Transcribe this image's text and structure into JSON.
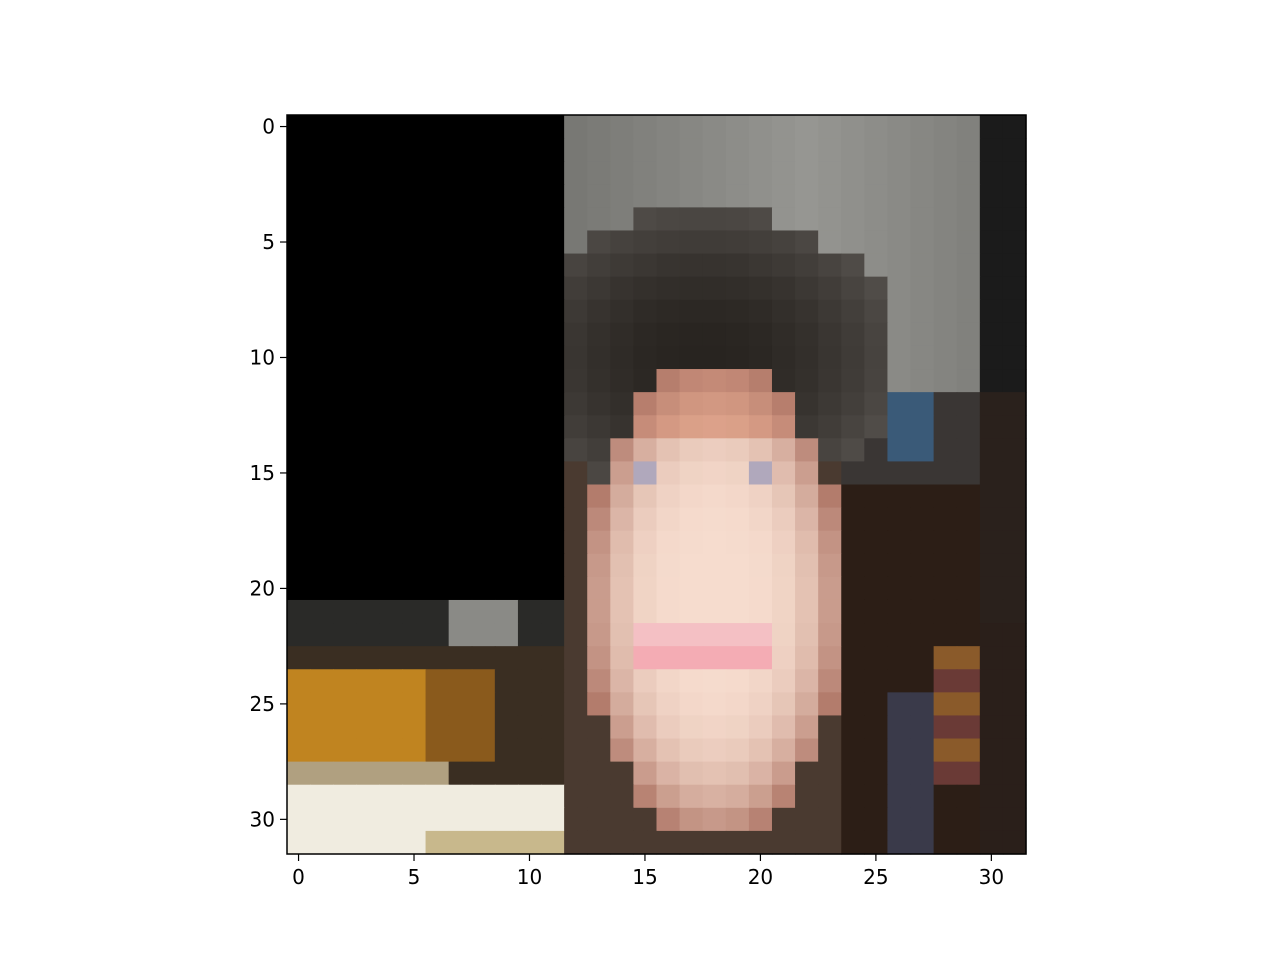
{
  "figure": {
    "type": "image",
    "description_free": true,
    "x_ticks": [
      "0",
      "5",
      "10",
      "15",
      "20",
      "25",
      "30"
    ],
    "y_ticks": [
      "0",
      "5",
      "10",
      "15",
      "20",
      "25",
      "30"
    ],
    "x_range": [
      -0.5,
      31.5
    ],
    "y_range": [
      -0.5,
      31.5
    ],
    "grid": false,
    "image_size": [
      32,
      32
    ],
    "occluded_region": {
      "rows": [
        0,
        20
      ],
      "cols": [
        0,
        11
      ],
      "color": "#000000"
    }
  }
}
